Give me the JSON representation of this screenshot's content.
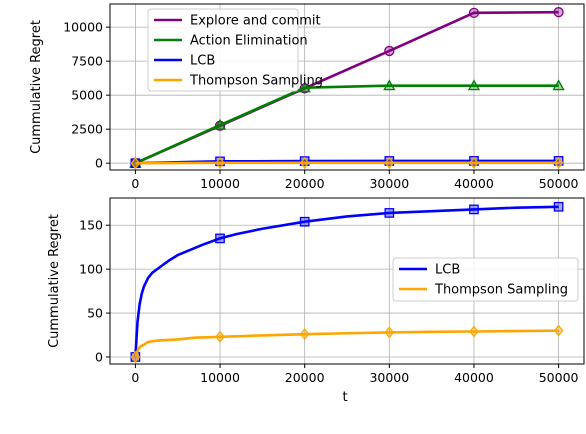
{
  "chart_data": [
    {
      "type": "line",
      "title": "",
      "xlabel": "",
      "ylabel": "Cummulative Regret",
      "xlim": [
        -3000,
        53000
      ],
      "ylim": [
        -500,
        11700
      ],
      "xticks": [
        0,
        10000,
        20000,
        30000,
        40000,
        50000
      ],
      "yticks": [
        0,
        2500,
        5000,
        7500,
        10000
      ],
      "grid": true,
      "legend_position": "top-left",
      "series": [
        {
          "name": "Explore and commit",
          "color": "#800080",
          "marker": "circle",
          "x": [
            0,
            10000,
            20000,
            30000,
            40000,
            50000
          ],
          "y": [
            0,
            2750,
            5500,
            8250,
            11050,
            11100
          ]
        },
        {
          "name": "Action Elimination",
          "color": "#008000",
          "marker": "triangle",
          "x": [
            0,
            10000,
            20000,
            30000,
            40000,
            50000
          ],
          "y": [
            0,
            2800,
            5550,
            5700,
            5700,
            5700
          ]
        },
        {
          "name": "LCB",
          "color": "#0000ff",
          "marker": "square",
          "x": [
            0,
            10000,
            20000,
            30000,
            40000,
            50000
          ],
          "y": [
            0,
            135,
            155,
            165,
            168,
            171
          ]
        },
        {
          "name": "Thompson Sampling",
          "color": "#ffa500",
          "marker": "diamond",
          "x": [
            0,
            10000,
            20000,
            30000,
            40000,
            50000
          ],
          "y": [
            0,
            23,
            26,
            28,
            29,
            30
          ]
        }
      ]
    },
    {
      "type": "line",
      "title": "",
      "xlabel": "t",
      "ylabel": "Cummulative Regret",
      "xlim": [
        -3000,
        53000
      ],
      "ylim": [
        -8,
        181
      ],
      "xticks": [
        0,
        10000,
        20000,
        30000,
        40000,
        50000
      ],
      "yticks": [
        0,
        50,
        100,
        150
      ],
      "grid": true,
      "legend_position": "center-right",
      "series": [
        {
          "name": "LCB",
          "color": "#0000ff",
          "marker": "square",
          "marker_x": [
            0,
            10000,
            20000,
            30000,
            40000,
            50000
          ],
          "x": [
            0,
            250,
            500,
            750,
            1000,
            1500,
            2000,
            3000,
            4000,
            5000,
            6000,
            8000,
            10000,
            12000,
            15000,
            20000,
            25000,
            30000,
            35000,
            40000,
            45000,
            50000
          ],
          "y": [
            0,
            40,
            60,
            72,
            80,
            90,
            96,
            103,
            110,
            116,
            120,
            128,
            135,
            140,
            146,
            154,
            160,
            164,
            166,
            168,
            170,
            171
          ]
        },
        {
          "name": "Thompson Sampling",
          "color": "#ffa500",
          "marker": "diamond",
          "marker_x": [
            0,
            10000,
            20000,
            30000,
            40000,
            50000
          ],
          "x": [
            0,
            300,
            600,
            1000,
            1500,
            2000,
            3000,
            5000,
            7000,
            10000,
            15000,
            20000,
            25000,
            30000,
            35000,
            40000,
            45000,
            50000
          ],
          "y": [
            0,
            8,
            12,
            14,
            17,
            18,
            19,
            20,
            22,
            23,
            24.5,
            26,
            27,
            28,
            28.7,
            29,
            29.5,
            30
          ]
        }
      ]
    }
  ]
}
